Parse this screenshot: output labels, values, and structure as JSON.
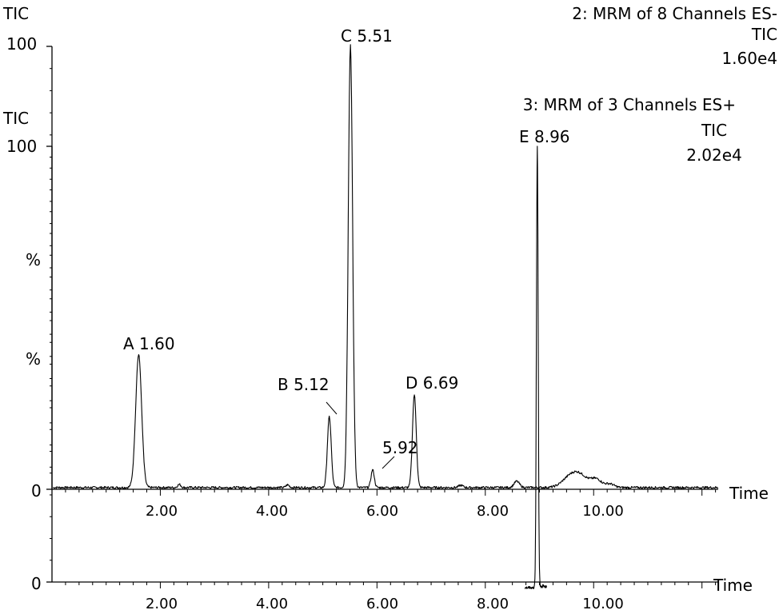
{
  "chart_data": [
    {
      "type": "line",
      "panel": "upper",
      "channel_title": "2: MRM of 8 Channels ES-",
      "trace_label": "TIC",
      "intensity": "1.60e4",
      "ylabel": "%",
      "ylabel_top": "TIC",
      "y_tick_labels": [
        "0",
        "100"
      ],
      "xlabel": "Time",
      "x_tick_labels": [
        "2.00",
        "4.00",
        "6.00",
        "8.00",
        "10.00"
      ],
      "xlim": [
        0.0,
        12.3
      ],
      "ylim": [
        0,
        100
      ],
      "peaks": [
        {
          "label": "A 1.60",
          "x": 1.6,
          "y": 30
        },
        {
          "label": "B 5.12",
          "x": 5.12,
          "y": 16
        },
        {
          "label": "C 5.51",
          "x": 5.51,
          "y": 100
        },
        {
          "label": "5.92",
          "x": 5.92,
          "y": 4
        },
        {
          "label": "D 6.69",
          "x": 6.69,
          "y": 21
        }
      ]
    },
    {
      "type": "line",
      "panel": "lower",
      "channel_title": "3: MRM of 3 Channels ES+",
      "trace_label": "TIC",
      "intensity": "2.02e4",
      "ylabel": "%",
      "ylabel_top": "TIC",
      "y_tick_labels": [
        "0",
        "100"
      ],
      "xlabel": "Time",
      "x_tick_labels": [
        "2.00",
        "4.00",
        "6.00",
        "8.00",
        "10.00"
      ],
      "xlim": [
        0.0,
        12.3
      ],
      "ylim": [
        0,
        100
      ],
      "peaks": [
        {
          "label": "E 8.96",
          "x": 8.96,
          "y": 100
        }
      ]
    }
  ]
}
